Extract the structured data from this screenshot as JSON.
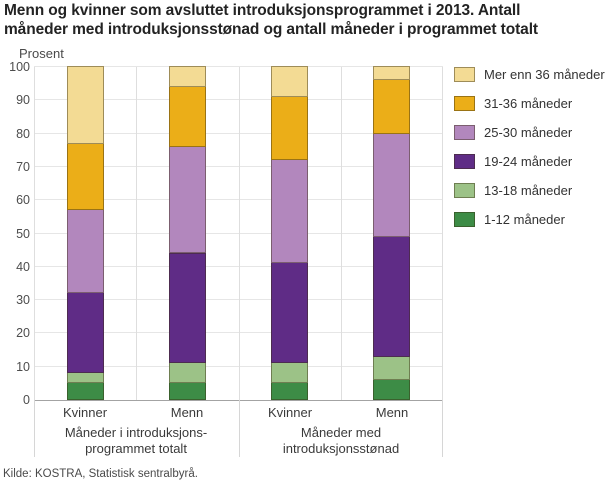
{
  "title": "Menn og kvinner som avsluttet introduksjonsprogrammet i 2013. Antall\nmåneder med introduksjonsstønad og antall måneder i programmet totalt",
  "source": "Kilde: KOSTRA, Statistisk sentralbyrå.",
  "chart_data": {
    "type": "bar",
    "stacked": true,
    "title": "Menn og kvinner som avsluttet introduksjonsprogrammet i 2013. Antall måneder med introduksjonsstønad og antall måneder i programmet totalt",
    "ylabel": "Prosent",
    "xlabel": "",
    "ylim": [
      0,
      100
    ],
    "yticks": [
      0,
      10,
      20,
      30,
      40,
      50,
      60,
      70,
      80,
      90,
      100
    ],
    "grid": true,
    "legend_position": "right",
    "categories": [
      "Kvinner",
      "Menn",
      "Kvinner",
      "Menn"
    ],
    "groups": [
      {
        "label": "Måneder i introduksjons-\nprogrammet totalt",
        "bars": [
          0,
          1
        ]
      },
      {
        "label": "Måneder med\nintroduksjonsstønad",
        "bars": [
          2,
          3
        ]
      }
    ],
    "series": [
      {
        "name": "1-12 måneder",
        "color": "#3d8c46",
        "values": [
          5,
          5,
          5,
          6
        ]
      },
      {
        "name": "13-18 måneder",
        "color": "#9cc287",
        "values": [
          3,
          6,
          6,
          7
        ]
      },
      {
        "name": "19-24 måneder",
        "color": "#5f2c86",
        "values": [
          24,
          33,
          30,
          36
        ]
      },
      {
        "name": "25-30 måneder",
        "color": "#b287bd",
        "values": [
          25,
          32,
          31,
          31
        ]
      },
      {
        "name": "31-36 måneder",
        "color": "#ebae18",
        "values": [
          20,
          18,
          19,
          16
        ]
      },
      {
        "name": "Mer enn 36 måneder",
        "color": "#f3db94",
        "values": [
          23,
          6,
          9,
          4
        ]
      }
    ]
  }
}
